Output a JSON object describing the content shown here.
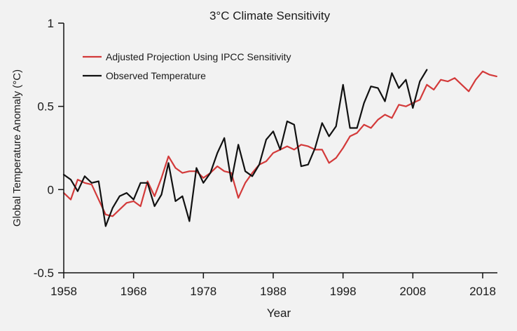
{
  "chart_data": {
    "type": "line",
    "title": "3°C Climate Sensitivity",
    "xlabel": "Year",
    "ylabel": "Global Temperature Anomaly (°C)",
    "xlim": [
      1958,
      2020
    ],
    "ylim": [
      -0.5,
      1
    ],
    "xticks": [
      1958,
      1968,
      1978,
      1988,
      1998,
      2008,
      2018
    ],
    "yticks": [
      -0.5,
      0,
      0.5,
      1
    ],
    "ytick_labels": [
      "-0.5",
      "0",
      "0.5",
      "1"
    ],
    "grid": false,
    "legend_position": "top-left",
    "series": [
      {
        "name": "Adjusted Projection Using IPCC Sensitivity",
        "color": "#d33a3a",
        "x": [
          1958,
          1959,
          1960,
          1961,
          1962,
          1963,
          1964,
          1965,
          1966,
          1967,
          1968,
          1969,
          1970,
          1971,
          1972,
          1973,
          1974,
          1975,
          1976,
          1977,
          1978,
          1979,
          1980,
          1981,
          1982,
          1983,
          1984,
          1985,
          1986,
          1987,
          1988,
          1989,
          1990,
          1991,
          1992,
          1993,
          1994,
          1995,
          1996,
          1997,
          1998,
          1999,
          2000,
          2001,
          2002,
          2003,
          2004,
          2005,
          2006,
          2007,
          2008,
          2009,
          2010,
          2011,
          2012,
          2013,
          2014,
          2015,
          2016,
          2017,
          2018,
          2019,
          2020
        ],
        "values": [
          -0.02,
          -0.06,
          0.06,
          0.04,
          0.03,
          -0.06,
          -0.15,
          -0.16,
          -0.12,
          -0.08,
          -0.07,
          -0.1,
          0.05,
          -0.04,
          0.07,
          0.2,
          0.13,
          0.1,
          0.11,
          0.11,
          0.07,
          0.1,
          0.14,
          0.11,
          0.1,
          -0.05,
          0.04,
          0.1,
          0.15,
          0.17,
          0.22,
          0.24,
          0.26,
          0.24,
          0.27,
          0.26,
          0.24,
          0.24,
          0.16,
          0.19,
          0.25,
          0.32,
          0.34,
          0.39,
          0.37,
          0.42,
          0.45,
          0.43,
          0.51,
          0.5,
          0.52,
          0.54,
          0.63,
          0.6,
          0.66,
          0.65,
          0.67,
          0.63,
          0.59,
          0.66,
          0.71,
          0.69,
          0.68
        ]
      },
      {
        "name": "Observed Temperature",
        "color": "#111111",
        "x": [
          1958,
          1959,
          1960,
          1961,
          1962,
          1963,
          1964,
          1965,
          1966,
          1967,
          1968,
          1969,
          1970,
          1971,
          1972,
          1973,
          1974,
          1975,
          1976,
          1977,
          1978,
          1979,
          1980,
          1981,
          1982,
          1983,
          1984,
          1985,
          1986,
          1987,
          1988,
          1989,
          1990,
          1991,
          1992,
          1993,
          1994,
          1995,
          1996,
          1997,
          1998,
          1999,
          2000,
          2001,
          2002,
          2003,
          2004,
          2005,
          2006,
          2007,
          2008,
          2009,
          2010
        ],
        "values": [
          0.09,
          0.06,
          -0.01,
          0.08,
          0.04,
          0.05,
          -0.22,
          -0.11,
          -0.04,
          -0.02,
          -0.06,
          0.04,
          0.04,
          -0.1,
          -0.03,
          0.16,
          -0.07,
          -0.04,
          -0.19,
          0.13,
          0.04,
          0.1,
          0.22,
          0.31,
          0.05,
          0.27,
          0.11,
          0.08,
          0.15,
          0.3,
          0.35,
          0.24,
          0.41,
          0.39,
          0.14,
          0.15,
          0.25,
          0.4,
          0.32,
          0.38,
          0.63,
          0.37,
          0.37,
          0.52,
          0.62,
          0.61,
          0.53,
          0.7,
          0.61,
          0.66,
          0.49,
          0.65,
          0.72
        ]
      }
    ]
  }
}
